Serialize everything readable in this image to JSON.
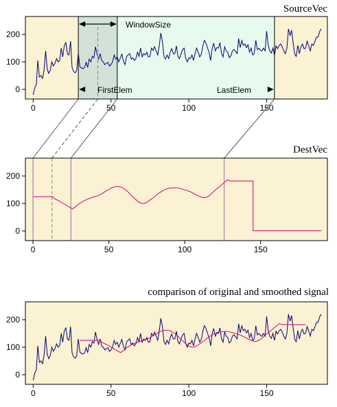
{
  "colors": {
    "plot_bg": "#fbf1d3",
    "window_bg": "#e6fbed",
    "first_window_bg": "#d2e2d8",
    "source_line": "#00006e",
    "smoothed_line": "#d60078",
    "frame": "#000000",
    "connector": "#555555"
  },
  "annotations": {
    "window_size": "WindowSize",
    "first_elem": "FirstElem",
    "last_elem": "LastElem"
  },
  "chart_data": [
    {
      "type": "line",
      "title": "SourceVec",
      "x_ticks": [
        0,
        50,
        100,
        150
      ],
      "y_ticks": [
        0,
        100,
        200
      ],
      "xlim": [
        -5,
        189
      ],
      "ylim": [
        -35,
        265
      ],
      "window_start": 29,
      "window_size": 25,
      "last_elem": 155,
      "series": [
        {
          "values": [
            -20,
            5,
            18,
            105,
            45,
            50,
            40,
            70,
            140,
            75,
            58,
            70,
            100,
            85,
            95,
            112,
            100,
            105,
            150,
            118,
            160,
            170,
            130,
            125,
            175,
            80,
            65,
            60,
            70,
            130,
            82,
            78,
            75,
            80,
            98,
            80,
            110,
            100,
            120,
            115,
            155,
            130,
            110,
            130,
            105,
            100,
            90,
            95,
            98,
            85,
            90,
            100,
            125,
            110,
            118,
            100,
            115,
            128,
            102,
            90,
            120,
            125,
            130,
            110,
            115,
            105,
            112,
            135,
            120,
            150,
            118,
            130,
            125,
            135,
            118,
            120,
            150,
            142,
            155,
            140,
            125,
            160,
            205,
            175,
            120,
            110,
            125,
            112,
            135,
            148,
            130,
            130,
            158,
            120,
            112,
            130,
            145,
            150,
            113,
            100,
            115,
            112,
            125,
            105,
            130,
            150,
            135,
            118,
            128,
            158,
            178,
            168,
            150,
            135,
            105,
            150,
            168,
            140,
            152,
            150,
            170,
            130,
            118,
            155,
            140,
            135,
            115,
            122,
            140,
            145,
            138,
            130,
            185,
            152,
            178,
            160,
            165,
            152,
            162,
            135,
            150,
            125,
            130,
            178,
            145,
            150,
            142,
            140,
            150,
            140,
            212,
            160,
            140,
            132,
            150,
            125,
            158,
            148,
            160,
            165,
            155,
            140,
            130,
            150,
            220,
            195,
            215,
            170,
            128,
            120,
            160,
            130,
            155,
            165,
            148,
            150,
            175,
            158,
            140,
            165,
            160,
            175,
            190,
            190,
            210,
            220
          ]
        }
      ]
    },
    {
      "type": "line",
      "title": "DestVec",
      "x_ticks": [
        0,
        50,
        100,
        150
      ],
      "y_ticks": [
        0,
        100,
        200
      ],
      "xlim": [
        -5,
        194
      ],
      "ylim": [
        -35,
        265
      ],
      "series": [
        {
          "points": [
            [
              0,
              125
            ],
            [
              10,
              125
            ],
            [
              13,
              125
            ],
            [
              14,
              118
            ],
            [
              17,
              110
            ],
            [
              20,
              100
            ],
            [
              23,
              90
            ],
            [
              25,
              84
            ],
            [
              26,
              80
            ],
            [
              28,
              88
            ],
            [
              30,
              98
            ],
            [
              33,
              108
            ],
            [
              36,
              116
            ],
            [
              40,
              124
            ],
            [
              43,
              128
            ],
            [
              46,
              138
            ],
            [
              49,
              148
            ],
            [
              52,
              158
            ],
            [
              55,
              162
            ],
            [
              58,
              160
            ],
            [
              61,
              150
            ],
            [
              63,
              140
            ],
            [
              65,
              128
            ],
            [
              67,
              118
            ],
            [
              69,
              108
            ],
            [
              71,
              101
            ],
            [
              73,
              100
            ],
            [
              75,
              104
            ],
            [
              77,
              112
            ],
            [
              80,
              124
            ],
            [
              83,
              138
            ],
            [
              86,
              148
            ],
            [
              89,
              155
            ],
            [
              92,
              157
            ],
            [
              95,
              157
            ],
            [
              98,
              153
            ],
            [
              101,
              148
            ],
            [
              104,
              142
            ],
            [
              107,
              133
            ],
            [
              110,
              125
            ],
            [
              112,
              121
            ],
            [
              114,
              122
            ],
            [
              116,
              128
            ],
            [
              118,
              138
            ],
            [
              121,
              153
            ],
            [
              124,
              166
            ],
            [
              126,
              176
            ],
            [
              128,
              186
            ],
            [
              130,
              182
            ],
            [
              135,
              182
            ],
            [
              142,
              182
            ],
            [
              145,
              182
            ],
            [
              145,
              1
            ],
            [
              150,
              1
            ],
            [
              190,
              1
            ]
          ]
        }
      ]
    },
    {
      "type": "line",
      "title": "comparison of original and smoothed signal",
      "x_ticks": [
        0,
        50,
        100,
        150
      ],
      "y_ticks": [
        0,
        100,
        200
      ],
      "xlim": [
        -5,
        189
      ],
      "ylim": [
        -35,
        265
      ],
      "series": [
        {
          "values": [
            -20,
            5,
            18,
            105,
            45,
            50,
            40,
            70,
            140,
            75,
            58,
            70,
            100,
            85,
            95,
            112,
            100,
            105,
            150,
            118,
            160,
            170,
            130,
            125,
            175,
            80,
            65,
            60,
            70,
            130,
            82,
            78,
            75,
            80,
            98,
            80,
            110,
            100,
            120,
            115,
            155,
            130,
            110,
            130,
            105,
            100,
            90,
            95,
            98,
            85,
            90,
            100,
            125,
            110,
            118,
            100,
            115,
            128,
            102,
            90,
            120,
            125,
            130,
            110,
            115,
            105,
            112,
            135,
            120,
            150,
            118,
            130,
            125,
            135,
            118,
            120,
            150,
            142,
            155,
            140,
            125,
            160,
            205,
            175,
            120,
            110,
            125,
            112,
            135,
            148,
            130,
            130,
            158,
            120,
            112,
            130,
            145,
            150,
            113,
            100,
            115,
            112,
            125,
            105,
            130,
            150,
            135,
            118,
            128,
            158,
            178,
            168,
            150,
            135,
            105,
            150,
            168,
            140,
            152,
            150,
            170,
            130,
            118,
            155,
            140,
            135,
            115,
            122,
            140,
            145,
            138,
            130,
            185,
            152,
            178,
            160,
            165,
            152,
            162,
            135,
            150,
            125,
            130,
            178,
            145,
            150,
            142,
            140,
            150,
            140,
            212,
            160,
            140,
            132,
            150,
            125,
            158,
            148,
            160,
            165,
            155,
            140,
            130,
            150,
            220,
            195,
            215,
            170,
            128,
            120,
            160,
            130,
            155,
            165,
            148,
            150,
            175,
            158,
            140,
            165,
            160,
            175,
            190,
            190,
            210,
            220
          ]
        },
        {
          "points": [
            [
              30,
              125
            ],
            [
              40,
              125
            ],
            [
              43,
              125
            ],
            [
              44,
              118
            ],
            [
              47,
              110
            ],
            [
              50,
              100
            ],
            [
              53,
              90
            ],
            [
              55,
              84
            ],
            [
              56,
              80
            ],
            [
              58,
              88
            ],
            [
              60,
              98
            ],
            [
              63,
              108
            ],
            [
              66,
              116
            ],
            [
              70,
              124
            ],
            [
              73,
              128
            ],
            [
              76,
              138
            ],
            [
              79,
              148
            ],
            [
              82,
              158
            ],
            [
              85,
              162
            ],
            [
              88,
              160
            ],
            [
              91,
              150
            ],
            [
              93,
              140
            ],
            [
              95,
              128
            ],
            [
              97,
              118
            ],
            [
              99,
              108
            ],
            [
              101,
              101
            ],
            [
              103,
              100
            ],
            [
              105,
              104
            ],
            [
              107,
              112
            ],
            [
              110,
              124
            ],
            [
              113,
              138
            ],
            [
              116,
              148
            ],
            [
              119,
              155
            ],
            [
              122,
              157
            ],
            [
              125,
              157
            ],
            [
              128,
              153
            ],
            [
              131,
              148
            ],
            [
              134,
              142
            ],
            [
              137,
              133
            ],
            [
              140,
              125
            ],
            [
              142,
              121
            ],
            [
              144,
              122
            ],
            [
              146,
              128
            ],
            [
              148,
              138
            ],
            [
              151,
              153
            ],
            [
              154,
              166
            ],
            [
              156,
              176
            ],
            [
              158,
              186
            ],
            [
              160,
              182
            ],
            [
              165,
              182
            ],
            [
              170,
              182
            ],
            [
              175,
              182
            ]
          ]
        }
      ]
    }
  ]
}
